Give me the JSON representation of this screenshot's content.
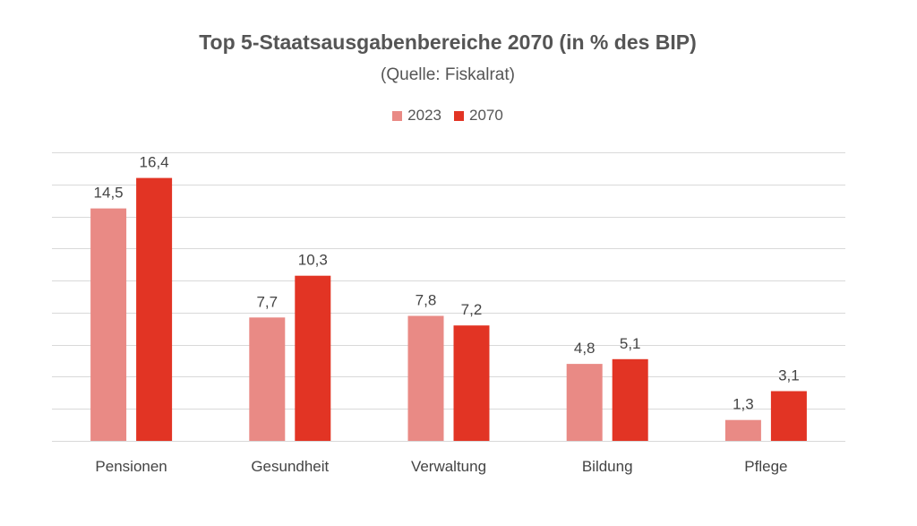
{
  "chart_data": {
    "type": "bar",
    "title": "Top 5-Staatsausgabenbereiche 2070 (in % des BIP)",
    "subtitle": "(Quelle: Fiskalrat)",
    "categories": [
      "Pensionen",
      "Gesundheit",
      "Verwaltung",
      "Bildung",
      "Pflege"
    ],
    "series": [
      {
        "name": "2023",
        "values": [
          14.5,
          7.7,
          7.8,
          4.8,
          1.3
        ],
        "labels": [
          "14,5",
          "7,7",
          "7,8",
          "4,8",
          "1,3"
        ],
        "color": "#e98a85"
      },
      {
        "name": "2070",
        "values": [
          16.4,
          10.3,
          7.2,
          5.1,
          3.1
        ],
        "labels": [
          "16,4",
          "10,3",
          "7,2",
          "5,1",
          "3,1"
        ],
        "color": "#e23424"
      }
    ],
    "ylim": [
      0,
      18
    ],
    "y_gridline_step": 2,
    "grid": true,
    "legend": "top-center",
    "gridline_color": "#d9d9d9"
  }
}
